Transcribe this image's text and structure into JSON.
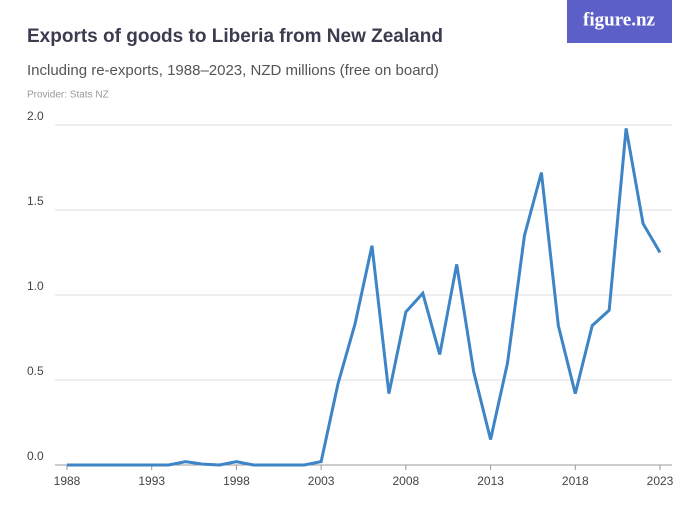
{
  "chart_data": {
    "type": "line",
    "title": "Exports of goods to Liberia from New Zealand",
    "subtitle": "Including re-exports, 1988–2023, NZD millions (free on board)",
    "provider": "Provider: Stats NZ",
    "logo": "figure.nz",
    "x": [
      1988,
      1989,
      1990,
      1991,
      1992,
      1993,
      1994,
      1995,
      1996,
      1997,
      1998,
      1999,
      2000,
      2001,
      2002,
      2003,
      2004,
      2005,
      2006,
      2007,
      2008,
      2009,
      2010,
      2011,
      2012,
      2013,
      2014,
      2015,
      2016,
      2017,
      2018,
      2019,
      2020,
      2021,
      2022,
      2023
    ],
    "values": [
      0,
      0,
      0,
      0,
      0,
      0,
      0,
      0.02,
      0.005,
      0,
      0.02,
      0,
      0,
      0,
      0,
      0.02,
      0.48,
      0.83,
      1.29,
      0.42,
      0.9,
      1.01,
      0.65,
      1.18,
      0.55,
      0.15,
      0.6,
      1.35,
      1.72,
      0.82,
      0.42,
      0.82,
      0.91,
      1.98,
      1.42,
      1.25
    ],
    "color": "#3d85c6",
    "xlim": [
      1988,
      2023
    ],
    "xticks": [
      1988,
      1993,
      1998,
      2003,
      2008,
      2013,
      2018,
      2023
    ],
    "ylim": [
      0,
      2
    ],
    "yticks": [
      {
        "value": 0,
        "label": "0.0"
      },
      0.5,
      {
        "value": 1,
        "label": "1.0"
      },
      1.5,
      {
        "value": 2,
        "label": "2.0"
      }
    ],
    "grid": true
  }
}
